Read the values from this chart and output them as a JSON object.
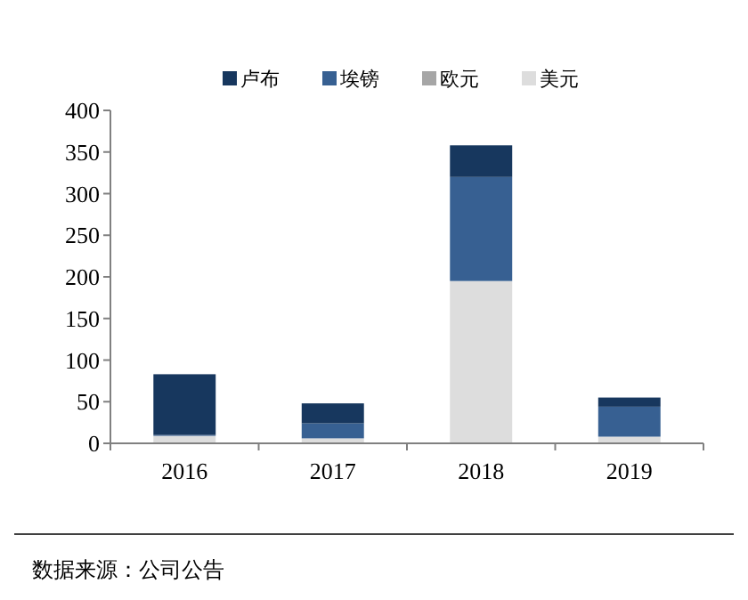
{
  "chart_data": {
    "type": "bar",
    "stacked": true,
    "categories": [
      "2016",
      "2017",
      "2018",
      "2019"
    ],
    "series": [
      {
        "name": "美元",
        "color": "#dddddd",
        "values": [
          9,
          6,
          195,
          8
        ]
      },
      {
        "name": "欧元",
        "color": "#a6a6a6",
        "values": [
          0,
          0,
          0,
          0
        ]
      },
      {
        "name": "埃镑",
        "color": "#376092",
        "values": [
          1,
          18,
          125,
          36
        ]
      },
      {
        "name": "卢布",
        "color": "#17375e",
        "values": [
          73,
          24,
          38,
          11
        ]
      }
    ],
    "ylim": [
      0,
      400
    ],
    "yticks": [
      0,
      50,
      100,
      150,
      200,
      250,
      300,
      350,
      400
    ],
    "grid": false,
    "legend": "top",
    "annotations": [
      "数据来源：公司公告"
    ]
  }
}
